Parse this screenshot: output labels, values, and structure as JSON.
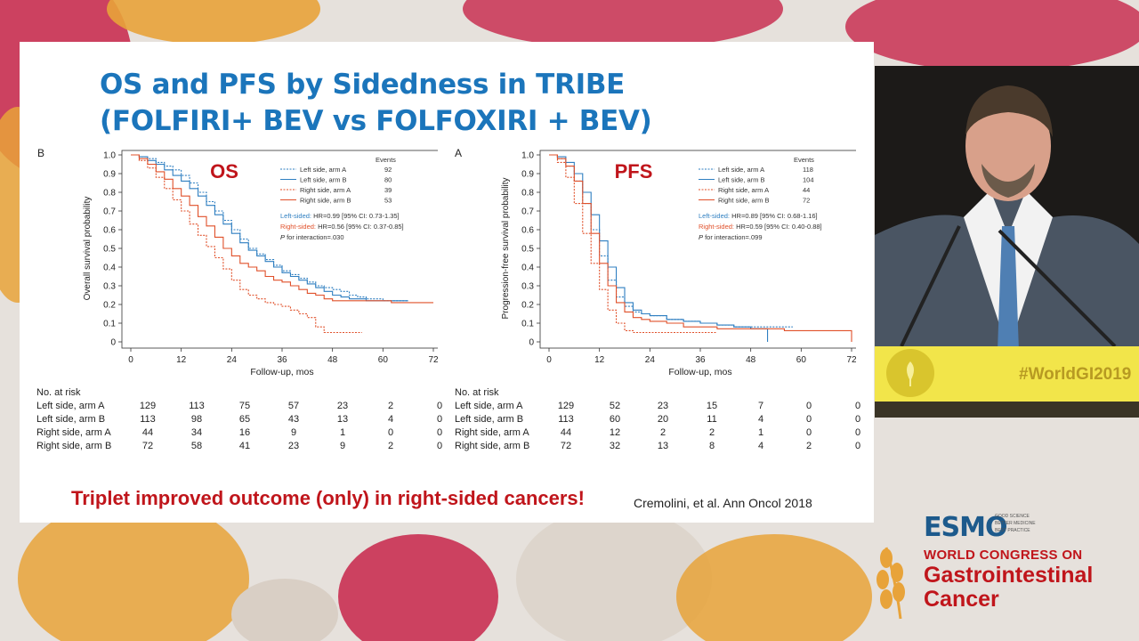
{
  "slide": {
    "title_lines": [
      "OS and PFS by Sidedness in TRIBE",
      "(FOLFIRI+ BEV vs FOLFOXIRI + BEV)"
    ],
    "conclusion": "Triplet improved outcome (only) in right-sided cancers!",
    "citation": "Cremolini, et al.  Ann Oncol 2018"
  },
  "chart_data": [
    {
      "type": "line",
      "panel": "B",
      "title": "OS",
      "xlabel": "Follow-up, mos",
      "ylabel": "Overall survival probability",
      "xlim": [
        0,
        72
      ],
      "ylim": [
        0,
        1
      ],
      "xticks": [
        "0",
        "12",
        "24",
        "36",
        "48",
        "60",
        "72"
      ],
      "yticks": [
        "0",
        "0.1",
        "0.2",
        "0.3",
        "0.4",
        "0.5",
        "0.6",
        "0.7",
        "0.8",
        "0.9",
        "1.0"
      ],
      "legend": {
        "events_header": "Events",
        "entries": [
          {
            "name": "Left side, arm A",
            "events": "92"
          },
          {
            "name": "Left side, arm B",
            "events": "80"
          },
          {
            "name": "Right side, arm A",
            "events": "39"
          },
          {
            "name": "Right side, arm B",
            "events": "53"
          }
        ]
      },
      "stats": [
        {
          "label": "Left-sided:",
          "text": "HR=0.99 [95% CI: 0.73-1.35]",
          "color": "#2f7fc1"
        },
        {
          "label": "Right-sided:",
          "text": "HR=0.56 [95% CI: 0.37-0.85]",
          "color": "#e0502a"
        },
        {
          "label": "P",
          "text": " for interaction=.030",
          "color": "#222222"
        }
      ],
      "series": [
        {
          "name": "Left side, arm A",
          "color": "#2f7fc1",
          "dash": true,
          "x": [
            0,
            2,
            4,
            6,
            8,
            10,
            12,
            14,
            16,
            18,
            20,
            22,
            24,
            26,
            28,
            30,
            32,
            34,
            36,
            38,
            40,
            42,
            44,
            46,
            48,
            50,
            52,
            54,
            56,
            60,
            62,
            66
          ],
          "y": [
            1,
            0.99,
            0.98,
            0.96,
            0.94,
            0.92,
            0.89,
            0.85,
            0.8,
            0.75,
            0.7,
            0.65,
            0.6,
            0.55,
            0.5,
            0.47,
            0.44,
            0.41,
            0.38,
            0.36,
            0.34,
            0.32,
            0.3,
            0.29,
            0.28,
            0.27,
            0.25,
            0.24,
            0.23,
            0.22,
            0.22,
            0.22
          ]
        },
        {
          "name": "Left side, arm B",
          "color": "#2f7fc1",
          "dash": false,
          "x": [
            0,
            2,
            4,
            6,
            8,
            10,
            12,
            14,
            16,
            18,
            20,
            22,
            24,
            26,
            28,
            30,
            32,
            34,
            36,
            38,
            40,
            42,
            44,
            46,
            48,
            50,
            52,
            56,
            60,
            62,
            66
          ],
          "y": [
            1,
            0.99,
            0.97,
            0.95,
            0.92,
            0.89,
            0.86,
            0.82,
            0.78,
            0.73,
            0.68,
            0.63,
            0.58,
            0.53,
            0.49,
            0.46,
            0.43,
            0.4,
            0.37,
            0.35,
            0.33,
            0.31,
            0.29,
            0.27,
            0.25,
            0.24,
            0.23,
            0.22,
            0.22,
            0.22,
            0.22
          ]
        },
        {
          "name": "Right side, arm A",
          "color": "#e0502a",
          "dash": true,
          "x": [
            0,
            2,
            4,
            6,
            8,
            10,
            12,
            14,
            16,
            18,
            20,
            22,
            24,
            26,
            28,
            30,
            32,
            34,
            36,
            38,
            40,
            42,
            44,
            46,
            48,
            50,
            52,
            55
          ],
          "y": [
            1,
            0.97,
            0.93,
            0.88,
            0.82,
            0.76,
            0.7,
            0.63,
            0.57,
            0.51,
            0.45,
            0.39,
            0.33,
            0.28,
            0.25,
            0.23,
            0.21,
            0.2,
            0.19,
            0.17,
            0.15,
            0.13,
            0.08,
            0.05,
            0.05,
            0.05,
            0.05,
            0.05
          ]
        },
        {
          "name": "Right side, arm B",
          "color": "#e0502a",
          "dash": false,
          "x": [
            0,
            2,
            4,
            6,
            8,
            10,
            12,
            14,
            16,
            18,
            20,
            22,
            24,
            26,
            28,
            30,
            32,
            34,
            36,
            38,
            40,
            42,
            44,
            46,
            48,
            52,
            56,
            60,
            62,
            66,
            72
          ],
          "y": [
            1,
            0.98,
            0.95,
            0.91,
            0.87,
            0.82,
            0.78,
            0.73,
            0.67,
            0.62,
            0.56,
            0.5,
            0.46,
            0.42,
            0.4,
            0.38,
            0.35,
            0.33,
            0.32,
            0.3,
            0.28,
            0.26,
            0.25,
            0.23,
            0.22,
            0.22,
            0.22,
            0.22,
            0.21,
            0.21,
            0.21
          ]
        }
      ],
      "risk_table": {
        "header": "No. at risk",
        "rows": [
          {
            "label": "Left side, arm A",
            "values": [
              "129",
              "113",
              "75",
              "57",
              "23",
              "2",
              "0"
            ]
          },
          {
            "label": "Left side, arm B",
            "values": [
              "113",
              "98",
              "65",
              "43",
              "13",
              "4",
              "0"
            ]
          },
          {
            "label": "Right side, arm A",
            "values": [
              "44",
              "34",
              "16",
              "9",
              "1",
              "0",
              "0"
            ]
          },
          {
            "label": "Right side, arm B",
            "values": [
              "72",
              "58",
              "41",
              "23",
              "9",
              "2",
              "0"
            ]
          }
        ]
      }
    },
    {
      "type": "line",
      "panel": "A",
      "title": "PFS",
      "xlabel": "Follow-up, mos",
      "ylabel": "Progression-free survival probability",
      "xlim": [
        0,
        72
      ],
      "ylim": [
        0,
        1
      ],
      "xticks": [
        "0",
        "12",
        "24",
        "36",
        "48",
        "60",
        "72"
      ],
      "yticks": [
        "0",
        "0.1",
        "0.2",
        "0.3",
        "0.4",
        "0.5",
        "0.6",
        "0.7",
        "0.8",
        "0.9",
        "1.0"
      ],
      "legend": {
        "events_header": "Events",
        "entries": [
          {
            "name": "Left side, arm A",
            "events": "118"
          },
          {
            "name": "Left side, arm B",
            "events": "104"
          },
          {
            "name": "Right side, arm A",
            "events": "44"
          },
          {
            "name": "Right side, arm B",
            "events": "72"
          }
        ]
      },
      "stats": [
        {
          "label": "Left-sided:",
          "text": "HR=0.89 [95% CI: 0.68-1.16]",
          "color": "#2f7fc1"
        },
        {
          "label": "Right-sided:",
          "text": "HR=0.59 [95% CI: 0.40-0.88]",
          "color": "#e0502a"
        },
        {
          "label": "P",
          "text": " for interaction=.099",
          "color": "#222222"
        }
      ],
      "series": [
        {
          "name": "Left side, arm A",
          "color": "#2f7fc1",
          "dash": true,
          "x": [
            0,
            2,
            4,
            6,
            8,
            10,
            12,
            14,
            16,
            18,
            20,
            22,
            24,
            28,
            32,
            36,
            40,
            44,
            48,
            52,
            58
          ],
          "y": [
            1,
            0.98,
            0.94,
            0.86,
            0.74,
            0.6,
            0.46,
            0.33,
            0.24,
            0.19,
            0.16,
            0.15,
            0.14,
            0.12,
            0.11,
            0.1,
            0.09,
            0.08,
            0.08,
            0.08,
            0.08
          ]
        },
        {
          "name": "Left side, arm B",
          "color": "#2f7fc1",
          "dash": false,
          "x": [
            0,
            2,
            4,
            6,
            8,
            10,
            12,
            14,
            16,
            18,
            20,
            22,
            24,
            28,
            32,
            36,
            40,
            44,
            48,
            52,
            52
          ],
          "y": [
            1,
            0.99,
            0.96,
            0.9,
            0.8,
            0.68,
            0.54,
            0.4,
            0.29,
            0.21,
            0.17,
            0.15,
            0.14,
            0.12,
            0.11,
            0.1,
            0.09,
            0.08,
            0.07,
            0.07,
            0.0
          ]
        },
        {
          "name": "Right side, arm A",
          "color": "#e0502a",
          "dash": true,
          "x": [
            0,
            2,
            4,
            6,
            8,
            10,
            12,
            14,
            16,
            18,
            20,
            24,
            28,
            32,
            36,
            40
          ],
          "y": [
            1,
            0.96,
            0.88,
            0.74,
            0.58,
            0.42,
            0.28,
            0.17,
            0.1,
            0.06,
            0.05,
            0.05,
            0.05,
            0.05,
            0.05,
            0.05
          ]
        },
        {
          "name": "Right side, arm B",
          "color": "#e0502a",
          "dash": false,
          "x": [
            0,
            2,
            4,
            6,
            8,
            10,
            12,
            14,
            16,
            18,
            20,
            22,
            24,
            28,
            32,
            36,
            40,
            48,
            56,
            64,
            72,
            72
          ],
          "y": [
            1,
            0.98,
            0.94,
            0.86,
            0.74,
            0.58,
            0.42,
            0.3,
            0.21,
            0.16,
            0.13,
            0.12,
            0.11,
            0.1,
            0.08,
            0.08,
            0.07,
            0.07,
            0.06,
            0.06,
            0.06,
            0.0
          ]
        }
      ],
      "risk_table": {
        "header": "No. at risk",
        "rows": [
          {
            "label": "Left side, arm A",
            "values": [
              "129",
              "52",
              "23",
              "15",
              "7",
              "0",
              "0"
            ]
          },
          {
            "label": "Left side, arm B",
            "values": [
              "113",
              "60",
              "20",
              "11",
              "4",
              "0",
              "0"
            ]
          },
          {
            "label": "Right side, arm A",
            "values": [
              "44",
              "12",
              "2",
              "2",
              "1",
              "0",
              "0"
            ]
          },
          {
            "label": "Right side, arm B",
            "values": [
              "72",
              "32",
              "13",
              "8",
              "4",
              "2",
              "0"
            ]
          }
        ]
      }
    }
  ],
  "sidebar": {
    "hashtag": "#WorldGI2019",
    "esmo_logo": "ESMO",
    "esmo_tagline": [
      "GOOD SCIENCE",
      "BETTER MEDICINE",
      "BEST PRACTICE"
    ],
    "congress_line1": "WORLD CONGRESS ON",
    "congress_line2": "Gastrointestinal",
    "congress_line3": "Cancer"
  },
  "colors": {
    "title_blue": "#1b75bb",
    "red": "#c0151b",
    "left_blue": "#2f7fc1",
    "right_orange": "#e0502a",
    "banner_yellow": "#f2e54a"
  }
}
